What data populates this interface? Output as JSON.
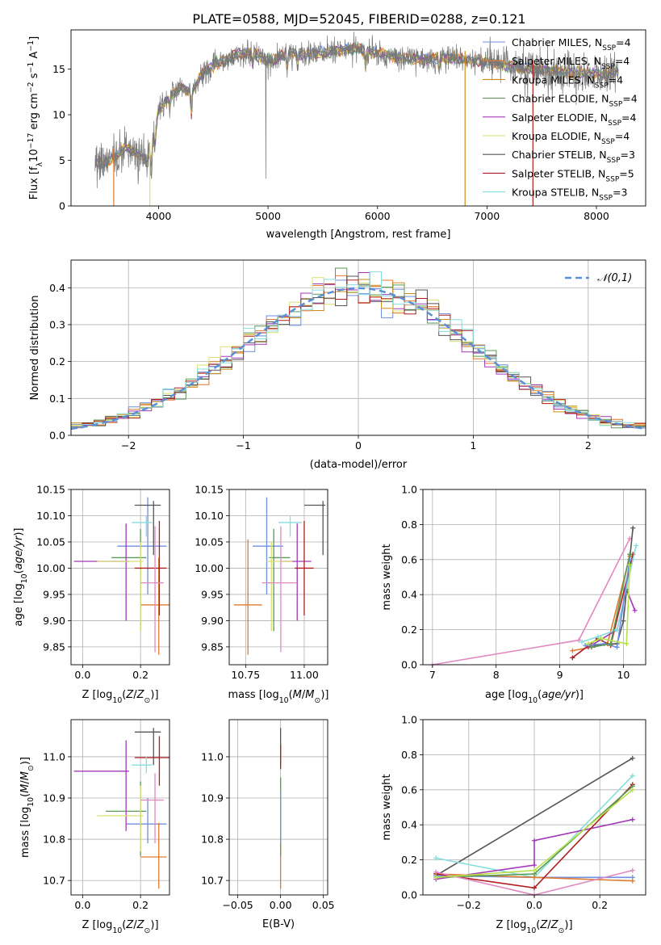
{
  "figure": {
    "title": "PLATE=0588, MJD=52045, FIBERID=0288, z=0.121",
    "models": [
      {
        "label": "Chabrier MILES, N_SSP=4",
        "color": "#6f8fe0"
      },
      {
        "label": "Salpeter MILES, N_SSP=4",
        "color": "#e07a2c"
      },
      {
        "label": "Kroupa MILES, N_SSP=4",
        "color": "#d18b1c"
      },
      {
        "label": "Chabrier ELODIE, N_SSP=4",
        "color": "#5a9a56"
      },
      {
        "label": "Salpeter ELODIE, N_SSP=4",
        "color": "#a23ab8"
      },
      {
        "label": "Kroupa ELODIE, N_SSP=4",
        "color": "#d8e070"
      },
      {
        "label": "Chabrier STELIB, N_SSP=3",
        "color": "#555555"
      },
      {
        "label": "Salpeter STELIB, N_SSP=5",
        "color": "#b01e1e"
      },
      {
        "label": "Kroupa STELIB, N_SSP=3",
        "color": "#86dddd"
      }
    ],
    "pink_color": "#e08ac2",
    "lime_color": "#b7e04a"
  },
  "chart_data": [
    {
      "id": "spectrum",
      "type": "line",
      "xlabel": "wavelength [Angstrom, rest frame]",
      "ylabel": "Flux [f_λ10^-17 erg cm^-2 s^-1 A^-1]",
      "xlim": [
        3200,
        8450
      ],
      "ylim": [
        0,
        19.3
      ],
      "xticks": [
        4000,
        5000,
        6000,
        7000,
        8000
      ],
      "yticks": [
        0,
        5,
        10,
        15
      ],
      "continuum": {
        "x": [
          3420,
          3500,
          3600,
          3700,
          3800,
          3900,
          3950,
          4000,
          4100,
          4200,
          4300,
          4400,
          4500,
          4600,
          4700,
          4800,
          4900,
          5000,
          5200,
          5400,
          5600,
          5800,
          6000,
          6200,
          6400,
          6600,
          6800,
          7000,
          7200,
          7400,
          7600,
          7800,
          8000,
          8200
        ],
        "y": [
          4.8,
          4.5,
          5.3,
          6.5,
          5.8,
          5.0,
          7.5,
          10.5,
          12.0,
          13.0,
          12.4,
          14.5,
          15.4,
          16.0,
          16.5,
          16.8,
          16.7,
          15.8,
          16.8,
          16.6,
          17.0,
          17.2,
          16.8,
          16.2,
          16.0,
          16.3,
          16.0,
          15.8,
          15.4,
          15.0,
          14.8,
          14.6,
          14.5,
          14.6
        ]
      },
      "gaps": [
        {
          "x": 3590,
          "color": "#e07a2c"
        },
        {
          "x": 3920,
          "color": "#d8e070"
        },
        {
          "x": 6800,
          "color": "#d18b1c"
        },
        {
          "x": 7420,
          "color": "#b01e1e"
        }
      ]
    },
    {
      "id": "residual_hist",
      "type": "step",
      "xlabel": "(data-model)/error",
      "ylabel": "Normed distribution",
      "xlim": [
        -2.5,
        2.5
      ],
      "ylim": [
        0,
        0.475
      ],
      "xticks": [
        -2,
        -1,
        0,
        1,
        2
      ],
      "yticks": [
        0.0,
        0.1,
        0.2,
        0.3,
        0.4
      ],
      "reference_label": "𝒩(0,1)",
      "bin_width": 0.1
    },
    {
      "id": "age_vs_Z",
      "type": "errorbar",
      "xlabel": "Z [log10(Z/Z⊙)]",
      "ylabel": "age  [log10(age/yr)]",
      "xlim": [
        -0.04,
        0.3
      ],
      "ylim": [
        9.816,
        10.15
      ],
      "xticks": [
        0.0,
        0.2
      ],
      "xtick_labels": [
        "0.0",
        "0.2"
      ],
      "yticks": [
        9.85,
        9.9,
        9.95,
        10.0,
        10.05,
        10.1,
        10.15
      ],
      "points": [
        {
          "m": 0,
          "x": 0.225,
          "xe": [
            0.12,
            0.29
          ],
          "y": 10.042,
          "ye": [
            9.95,
            10.135
          ]
        },
        {
          "m": 1,
          "x": 0.263,
          "xe": [
            0.2,
            0.3
          ],
          "y": 9.93,
          "ye": [
            9.835,
            10.02
          ]
        },
        {
          "m": 3,
          "x": 0.2,
          "xe": [
            0.1,
            0.22
          ],
          "y": 10.02,
          "ye": [
            9.88,
            10.075
          ]
        },
        {
          "m": 4,
          "x": 0.15,
          "xe": [
            -0.03,
            0.16
          ],
          "y": 10.013,
          "ye": [
            9.9,
            10.085
          ]
        },
        {
          "m": 5,
          "x": 0.2,
          "xe": [
            0.05,
            0.21
          ],
          "y": 10.013,
          "ye": [
            9.88,
            10.05
          ]
        },
        {
          "m": 6,
          "x": 0.245,
          "xe": [
            0.18,
            0.27
          ],
          "y": 10.12,
          "ye": [
            10.025,
            10.128
          ]
        },
        {
          "m": 7,
          "x": 0.265,
          "xe": [
            0.18,
            0.29
          ],
          "y": 10.0,
          "ye": [
            9.91,
            10.09
          ]
        },
        {
          "m": 8,
          "x": 0.22,
          "xe": [
            0.17,
            0.24
          ],
          "y": 10.087,
          "ye": [
            10.06,
            10.1
          ]
        },
        {
          "m": "pink",
          "x": 0.25,
          "xe": [
            0.2,
            0.28
          ],
          "y": 9.972,
          "ye": [
            9.84,
            10.08
          ]
        }
      ]
    },
    {
      "id": "age_vs_mass",
      "type": "errorbar",
      "xlabel": "mass [log10(M/M⊙)]",
      "ylabel": "",
      "xlim": [
        10.68,
        11.1
      ],
      "ylim": [
        9.816,
        10.15
      ],
      "xticks": [
        10.75,
        11.0
      ],
      "xtick_labels": [
        "10.75",
        "11.00"
      ],
      "yticks": [
        9.85,
        9.9,
        9.95,
        10.0,
        10.05,
        10.1,
        10.15
      ],
      "points": [
        {
          "m": 0,
          "x": 10.84,
          "xe": [
            10.78,
            10.91
          ],
          "y": 10.042,
          "ye": [
            9.95,
            10.135
          ]
        },
        {
          "m": 1,
          "x": 10.76,
          "xe": [
            10.7,
            10.82
          ],
          "y": 9.93,
          "ye": [
            9.835,
            10.055
          ]
        },
        {
          "m": 3,
          "x": 10.87,
          "xe": [
            10.85,
            10.94
          ],
          "y": 10.02,
          "ye": [
            9.88,
            10.075
          ]
        },
        {
          "m": 4,
          "x": 10.97,
          "xe": [
            10.9,
            11.03
          ],
          "y": 10.013,
          "ye": [
            9.9,
            10.085
          ]
        },
        {
          "m": 5,
          "x": 10.86,
          "xe": [
            10.84,
            10.95
          ],
          "y": 10.013,
          "ye": [
            9.88,
            10.05
          ]
        },
        {
          "m": 6,
          "x": 11.08,
          "xe": [
            11.0,
            11.09
          ],
          "y": 10.12,
          "ye": [
            10.025,
            10.128
          ]
        },
        {
          "m": 7,
          "x": 11.0,
          "xe": [
            10.96,
            11.04
          ],
          "y": 10.0,
          "ye": [
            9.91,
            10.09
          ]
        },
        {
          "m": 8,
          "x": 10.94,
          "xe": [
            10.89,
            10.99
          ],
          "y": 10.087,
          "ye": [
            10.06,
            10.1
          ]
        },
        {
          "m": "pink",
          "x": 10.9,
          "xe": [
            10.82,
            10.97
          ],
          "y": 9.972,
          "ye": [
            9.84,
            10.08
          ]
        }
      ]
    },
    {
      "id": "weight_vs_age",
      "type": "line",
      "xlabel": "age  [log10(age/yr)]",
      "ylabel": "mass weight",
      "xlim": [
        6.85,
        10.35
      ],
      "ylim": [
        0,
        1.0
      ],
      "xticks": [
        7,
        8,
        9,
        10
      ],
      "yticks": [
        0.0,
        0.2,
        0.4,
        0.6,
        0.8,
        1.0
      ],
      "series": [
        {
          "m": "pink",
          "x": [
            7.0,
            9.3,
            10.1
          ],
          "y": [
            0.0,
            0.14,
            0.72
          ]
        },
        {
          "m": 1,
          "x": [
            9.2,
            9.5,
            9.75,
            10.1
          ],
          "y": [
            0.08,
            0.1,
            0.12,
            0.62
          ]
        },
        {
          "m": 4,
          "x": [
            9.45,
            9.9,
            10.05,
            10.18
          ],
          "y": [
            0.1,
            0.2,
            0.43,
            0.31
          ]
        },
        {
          "m": 6,
          "x": [
            9.55,
            9.9,
            10.0,
            10.15
          ],
          "y": [
            0.11,
            0.12,
            0.25,
            0.78
          ]
        },
        {
          "m": 7,
          "x": [
            9.2,
            9.6,
            9.8,
            10.15
          ],
          "y": [
            0.04,
            0.15,
            0.11,
            0.63
          ]
        },
        {
          "m": 8,
          "x": [
            9.35,
            9.6,
            9.9,
            10.2
          ],
          "y": [
            0.13,
            0.16,
            0.2,
            0.68
          ]
        },
        {
          "m": 0,
          "x": [
            9.4,
            9.7,
            9.9,
            10.1
          ],
          "y": [
            0.11,
            0.12,
            0.1,
            0.6
          ]
        },
        {
          "m": 3,
          "x": [
            9.5,
            9.8,
            10.1
          ],
          "y": [
            0.1,
            0.12,
            0.63
          ]
        },
        {
          "m": "lime",
          "x": [
            9.45,
            9.65,
            10.05,
            10.1
          ],
          "y": [
            0.12,
            0.15,
            0.12,
            0.57
          ]
        }
      ]
    },
    {
      "id": "mass_vs_Z",
      "type": "errorbar",
      "xlabel": "Z [log10(Z/Z⊙)]",
      "ylabel": "mass [log10(M/M⊙)]",
      "xlim": [
        -0.04,
        0.3
      ],
      "ylim": [
        10.665,
        11.09
      ],
      "xticks": [
        0.0,
        0.2
      ],
      "xtick_labels": [
        "0.0",
        "0.2"
      ],
      "yticks": [
        10.7,
        10.8,
        10.9,
        11.0
      ],
      "points": [
        {
          "m": 0,
          "x": 0.225,
          "xe": [
            0.15,
            0.29
          ],
          "y": 10.837,
          "ye": [
            10.79,
            10.9
          ]
        },
        {
          "m": 1,
          "x": 0.263,
          "xe": [
            0.2,
            0.29
          ],
          "y": 10.757,
          "ye": [
            10.68,
            10.84
          ]
        },
        {
          "m": 3,
          "x": 0.2,
          "xe": [
            0.08,
            0.22
          ],
          "y": 10.868,
          "ye": [
            10.76,
            10.94
          ]
        },
        {
          "m": 4,
          "x": 0.15,
          "xe": [
            -0.03,
            0.16
          ],
          "y": 10.965,
          "ye": [
            10.82,
            11.04
          ]
        },
        {
          "m": 5,
          "x": 0.2,
          "xe": [
            0.05,
            0.21
          ],
          "y": 10.857,
          "ye": [
            10.77,
            10.93
          ]
        },
        {
          "m": 6,
          "x": 0.245,
          "xe": [
            0.18,
            0.27
          ],
          "y": 11.06,
          "ye": [
            10.98,
            11.07
          ]
        },
        {
          "m": 7,
          "x": 0.265,
          "xe": [
            0.18,
            0.3
          ],
          "y": 10.998,
          "ye": [
            10.93,
            11.05
          ]
        },
        {
          "m": 8,
          "x": 0.22,
          "xe": [
            0.17,
            0.24
          ],
          "y": 10.98,
          "ye": [
            10.96,
            11.0
          ]
        },
        {
          "m": "pink",
          "x": 0.25,
          "xe": [
            0.2,
            0.28
          ],
          "y": 10.895,
          "ye": [
            10.79,
            10.96
          ]
        }
      ]
    },
    {
      "id": "mass_vs_EBV",
      "type": "errorbar",
      "xlabel": "E(B-V)",
      "ylabel": "",
      "xlim": [
        -0.06,
        0.055
      ],
      "ylim": [
        10.665,
        11.09
      ],
      "xticks": [
        -0.05,
        0.0,
        0.05
      ],
      "xtick_labels": [
        "−0.05",
        "0.00",
        "0.05"
      ],
      "yticks": [
        10.7,
        10.8,
        10.9,
        11.0
      ],
      "points": [
        {
          "m": 1,
          "x": 0.0,
          "xe": [
            0.0,
            0.0
          ],
          "y": 10.76,
          "ye": [
            10.68,
            10.84
          ]
        },
        {
          "m": 5,
          "x": 0.0,
          "xe": [
            0.0,
            0.0
          ],
          "y": 10.86,
          "ye": [
            10.77,
            10.95
          ]
        },
        {
          "m": 3,
          "x": 0.0,
          "xe": [
            0.0,
            0.0
          ],
          "y": 10.87,
          "ye": [
            10.76,
            10.95
          ]
        },
        {
          "m": 0,
          "x": 0.0,
          "xe": [
            0.0,
            0.0
          ],
          "y": 10.84,
          "ye": [
            10.79,
            10.92
          ]
        },
        {
          "m": 6,
          "x": 0.0,
          "xe": [
            0.0,
            0.0
          ],
          "y": 11.06,
          "ye": [
            10.98,
            11.07
          ]
        },
        {
          "m": 7,
          "x": 0.0,
          "xe": [
            0.0,
            0.0
          ],
          "y": 11.0,
          "ye": [
            10.97,
            11.03
          ]
        }
      ]
    },
    {
      "id": "weight_vs_Z",
      "type": "line",
      "xlabel": "Z [log10(Z/Z⊙)]",
      "ylabel": "mass weight",
      "xlim": [
        -0.34,
        0.34
      ],
      "ylim": [
        0,
        1.0
      ],
      "xticks": [
        -0.2,
        0.0,
        0.2
      ],
      "xtick_labels": [
        "−0.2",
        "0.0",
        "0.2"
      ],
      "yticks": [
        0.0,
        0.2,
        0.4,
        0.6,
        0.8,
        1.0
      ],
      "series": [
        {
          "m": 6,
          "x": [
            -0.3,
            0.3
          ],
          "y": [
            0.11,
            0.78
          ]
        },
        {
          "m": 8,
          "x": [
            -0.3,
            0.0,
            0.3
          ],
          "y": [
            0.21,
            0.1,
            0.68
          ]
        },
        {
          "m": 4,
          "x": [
            -0.3,
            0.0,
            0.0,
            0.3
          ],
          "y": [
            0.09,
            0.17,
            0.31,
            0.43
          ]
        },
        {
          "m": 0,
          "x": [
            -0.3,
            0.0,
            0.3
          ],
          "y": [
            0.11,
            0.1,
            0.1
          ]
        },
        {
          "m": 1,
          "x": [
            -0.3,
            0.0,
            0.3
          ],
          "y": [
            0.12,
            0.1,
            0.08
          ]
        },
        {
          "m": 7,
          "x": [
            -0.3,
            0.0,
            0.3
          ],
          "y": [
            0.12,
            0.04,
            0.63
          ]
        },
        {
          "m": 3,
          "x": [
            -0.3,
            0.0,
            0.3
          ],
          "y": [
            0.1,
            0.12,
            0.62
          ]
        },
        {
          "m": "pink",
          "x": [
            -0.3,
            0.0,
            0.3
          ],
          "y": [
            0.13,
            0.0,
            0.14
          ]
        },
        {
          "m": "lime",
          "x": [
            -0.3,
            0.0,
            0.3
          ],
          "y": [
            0.1,
            0.14,
            0.6
          ]
        }
      ]
    }
  ]
}
